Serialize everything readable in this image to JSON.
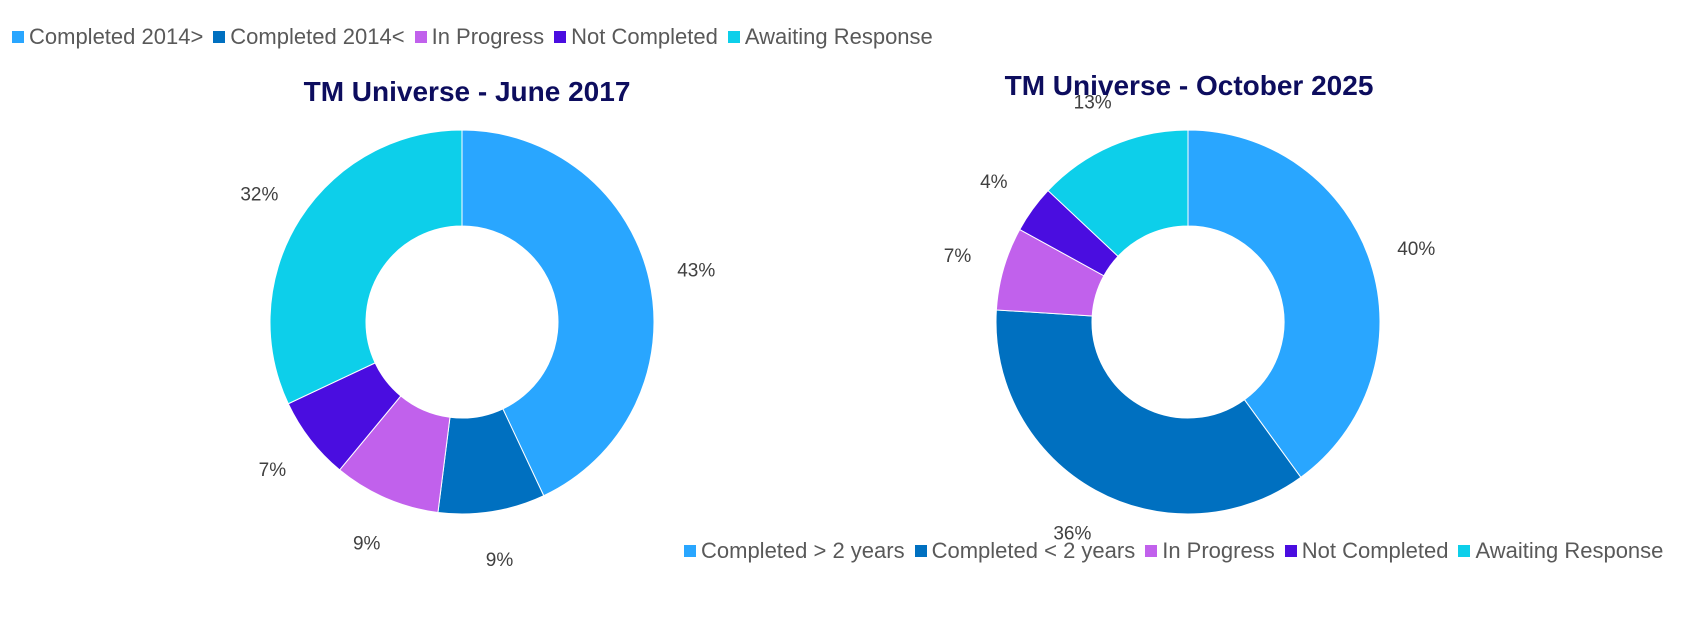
{
  "colors": {
    "completed_old": "#29a6ff",
    "completed_new": "#0070c0",
    "in_progress": "#c161ec",
    "not_completed": "#4a0de0",
    "awaiting": "#0dcfea"
  },
  "chart_data": [
    {
      "type": "pie",
      "donut": true,
      "title": "TM Universe - June 2017",
      "legend_position": "top",
      "categories": [
        "Completed 2014>",
        "Completed 2014<",
        "In Progress",
        "Not Completed",
        "Awaiting Response"
      ],
      "values": [
        43,
        9,
        9,
        7,
        32
      ],
      "labels": [
        "43%",
        "9%",
        "9%",
        "7%",
        "32%"
      ],
      "color_keys": [
        "completed_old",
        "completed_new",
        "in_progress",
        "not_completed",
        "awaiting"
      ]
    },
    {
      "type": "pie",
      "donut": true,
      "title": "TM Universe - October 2025",
      "legend_position": "bottom",
      "categories": [
        "Completed > 2 years",
        "Completed < 2 years",
        "In Progress",
        "Not Completed",
        "Awaiting Response"
      ],
      "values": [
        40,
        36,
        7,
        4,
        13
      ],
      "labels": [
        "40%",
        "36%",
        "7%",
        "4%",
        "13%"
      ],
      "color_keys": [
        "completed_old",
        "completed_new",
        "in_progress",
        "not_completed",
        "awaiting"
      ]
    }
  ]
}
